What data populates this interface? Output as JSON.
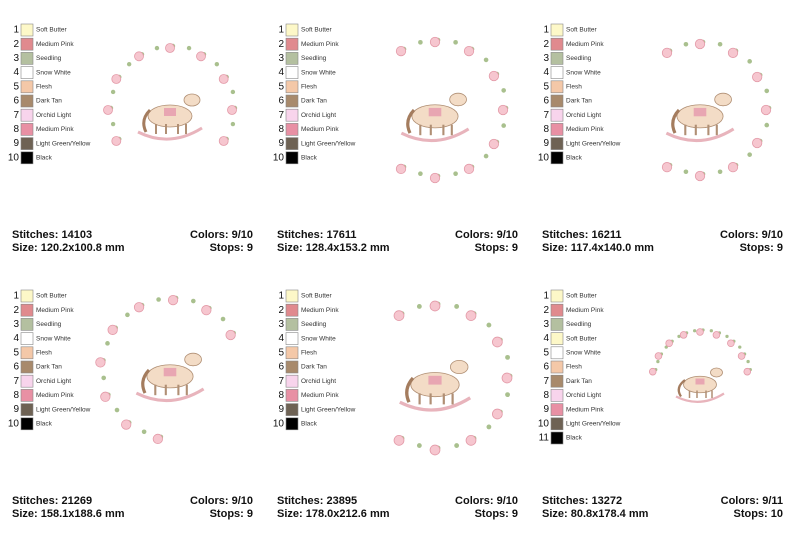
{
  "designs": [
    {
      "colors": [
        {
          "num": "1",
          "name": "Soft Butter",
          "color": "#fdf8c8"
        },
        {
          "num": "2",
          "name": "Medium Pink",
          "color": "#e08a8e"
        },
        {
          "num": "3",
          "name": "Seedling",
          "color": "#b4c0a0"
        },
        {
          "num": "4",
          "name": "Snow White",
          "color": "#ffffff"
        },
        {
          "num": "5",
          "name": "Flesh",
          "color": "#f4c8a8"
        },
        {
          "num": "6",
          "name": "Dark Tan",
          "color": "#a88a6c"
        },
        {
          "num": "7",
          "name": "Orchid Light",
          "color": "#f8d4ec"
        },
        {
          "num": "8",
          "name": "Medium Pink",
          "color": "#e890a4"
        },
        {
          "num": "9",
          "name": "Light Green/Yellow",
          "color": "#6e6254"
        },
        {
          "num": "10",
          "name": "Black",
          "color": "#000000"
        }
      ],
      "stitches": "Stitches: 14103",
      "size": "Size: 120.2x100.8 mm",
      "colors_used": "Colors: 9/10",
      "stops": "Stops: 9"
    },
    {
      "colors": [
        {
          "num": "1",
          "name": "Soft Butter",
          "color": "#fdf8c8"
        },
        {
          "num": "2",
          "name": "Medium Pink",
          "color": "#e08a8e"
        },
        {
          "num": "3",
          "name": "Seedling",
          "color": "#b4c0a0"
        },
        {
          "num": "4",
          "name": "Snow White",
          "color": "#ffffff"
        },
        {
          "num": "5",
          "name": "Flesh",
          "color": "#f4c8a8"
        },
        {
          "num": "6",
          "name": "Dark Tan",
          "color": "#a88a6c"
        },
        {
          "num": "7",
          "name": "Orchid Light",
          "color": "#f8d4ec"
        },
        {
          "num": "8",
          "name": "Medium Pink",
          "color": "#e890a4"
        },
        {
          "num": "9",
          "name": "Light Green/Yellow",
          "color": "#6e6254"
        },
        {
          "num": "10",
          "name": "Black",
          "color": "#000000"
        }
      ],
      "stitches": "Stitches: 17611",
      "size": "Size: 128.4x153.2 mm",
      "colors_used": "Colors: 9/10",
      "stops": "Stops: 9"
    },
    {
      "colors": [
        {
          "num": "1",
          "name": "Soft Butter",
          "color": "#fdf8c8"
        },
        {
          "num": "2",
          "name": "Medium Pink",
          "color": "#e08a8e"
        },
        {
          "num": "3",
          "name": "Seedling",
          "color": "#b4c0a0"
        },
        {
          "num": "4",
          "name": "Snow White",
          "color": "#ffffff"
        },
        {
          "num": "5",
          "name": "Flesh",
          "color": "#f4c8a8"
        },
        {
          "num": "6",
          "name": "Dark Tan",
          "color": "#a88a6c"
        },
        {
          "num": "7",
          "name": "Orchid Light",
          "color": "#f8d4ec"
        },
        {
          "num": "8",
          "name": "Medium Pink",
          "color": "#e890a4"
        },
        {
          "num": "9",
          "name": "Light Green/Yellow",
          "color": "#6e6254"
        },
        {
          "num": "10",
          "name": "Black",
          "color": "#000000"
        }
      ],
      "stitches": "Stitches: 16211",
      "size": "Size: 117.4x140.0 mm",
      "colors_used": "Colors: 9/10",
      "stops": "Stops: 9"
    },
    {
      "colors": [
        {
          "num": "1",
          "name": "Soft Butter",
          "color": "#fdf8c8"
        },
        {
          "num": "2",
          "name": "Medium Pink",
          "color": "#e08a8e"
        },
        {
          "num": "3",
          "name": "Seedling",
          "color": "#b4c0a0"
        },
        {
          "num": "4",
          "name": "Snow White",
          "color": "#ffffff"
        },
        {
          "num": "5",
          "name": "Flesh",
          "color": "#f4c8a8"
        },
        {
          "num": "6",
          "name": "Dark Tan",
          "color": "#a88a6c"
        },
        {
          "num": "7",
          "name": "Orchid Light",
          "color": "#f8d4ec"
        },
        {
          "num": "8",
          "name": "Medium Pink",
          "color": "#e890a4"
        },
        {
          "num": "9",
          "name": "Light Green/Yellow",
          "color": "#6e6254"
        },
        {
          "num": "10",
          "name": "Black",
          "color": "#000000"
        }
      ],
      "stitches": "Stitches: 21269",
      "size": "Size: 158.1x188.6 mm",
      "colors_used": "Colors: 9/10",
      "stops": "Stops: 9"
    },
    {
      "colors": [
        {
          "num": "1",
          "name": "Soft Butter",
          "color": "#fdf8c8"
        },
        {
          "num": "2",
          "name": "Medium Pink",
          "color": "#e08a8e"
        },
        {
          "num": "3",
          "name": "Seedling",
          "color": "#b4c0a0"
        },
        {
          "num": "4",
          "name": "Snow White",
          "color": "#ffffff"
        },
        {
          "num": "5",
          "name": "Flesh",
          "color": "#f4c8a8"
        },
        {
          "num": "6",
          "name": "Dark Tan",
          "color": "#a88a6c"
        },
        {
          "num": "7",
          "name": "Orchid Light",
          "color": "#f8d4ec"
        },
        {
          "num": "8",
          "name": "Medium Pink",
          "color": "#e890a4"
        },
        {
          "num": "9",
          "name": "Light Green/Yellow",
          "color": "#6e6254"
        },
        {
          "num": "10",
          "name": "Black",
          "color": "#000000"
        }
      ],
      "stitches": "Stitches: 23895",
      "size": "Size: 178.0x212.6 mm",
      "colors_used": "Colors: 9/10",
      "stops": "Stops: 9"
    },
    {
      "colors": [
        {
          "num": "1",
          "name": "Soft Butter",
          "color": "#fdf8c8"
        },
        {
          "num": "2",
          "name": "Medium Pink",
          "color": "#e08a8e"
        },
        {
          "num": "3",
          "name": "Seedling",
          "color": "#b4c0a0"
        },
        {
          "num": "4",
          "name": "Soft Butter",
          "color": "#fdf8c8"
        },
        {
          "num": "5",
          "name": "Snow White",
          "color": "#ffffff"
        },
        {
          "num": "6",
          "name": "Flesh",
          "color": "#f4c8a8"
        },
        {
          "num": "7",
          "name": "Dark Tan",
          "color": "#a88a6c"
        },
        {
          "num": "8",
          "name": "Orchid Light",
          "color": "#f8d4ec"
        },
        {
          "num": "9",
          "name": "Medium Pink",
          "color": "#e890a4"
        },
        {
          "num": "10",
          "name": "Light Green/Yellow",
          "color": "#6e6254"
        },
        {
          "num": "11",
          "name": "Black",
          "color": "#000000"
        }
      ],
      "stitches": "Stitches: 13272",
      "size": "Size: 80.8x178.4 mm",
      "colors_used": "Colors: 9/11",
      "stops": "Stops: 10"
    }
  ]
}
